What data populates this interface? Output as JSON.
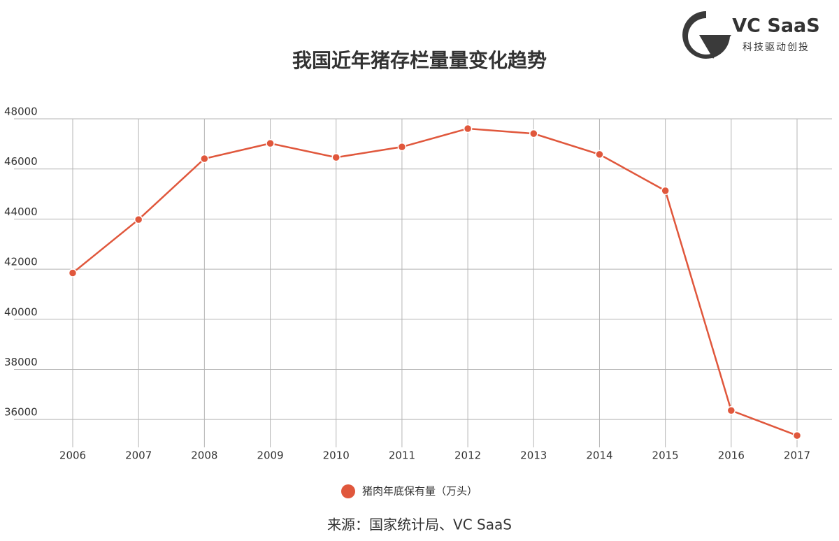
{
  "chart_data": {
    "type": "line",
    "title": "我国近年猪存栏量量变化趋势",
    "categories": [
      "2006",
      "2007",
      "2008",
      "2009",
      "2010",
      "2011",
      "2012",
      "2013",
      "2014",
      "2015",
      "2016",
      "2017"
    ],
    "series": [
      {
        "name": "猪肉年底保有量（万头）",
        "color": "#e0573c",
        "values": [
          41850,
          43980,
          46410,
          47020,
          46460,
          46880,
          47610,
          47410,
          46580,
          45130,
          36360,
          35360
        ]
      }
    ],
    "ylim": [
      35000,
      48000
    ],
    "yticks": [
      36000,
      38000,
      40000,
      42000,
      44000,
      46000,
      48000
    ],
    "grid": true,
    "source": "来源：国家统计局、VC SaaS"
  },
  "logo": {
    "name": "VC SaaS",
    "tagline": "科技驱动创投"
  }
}
